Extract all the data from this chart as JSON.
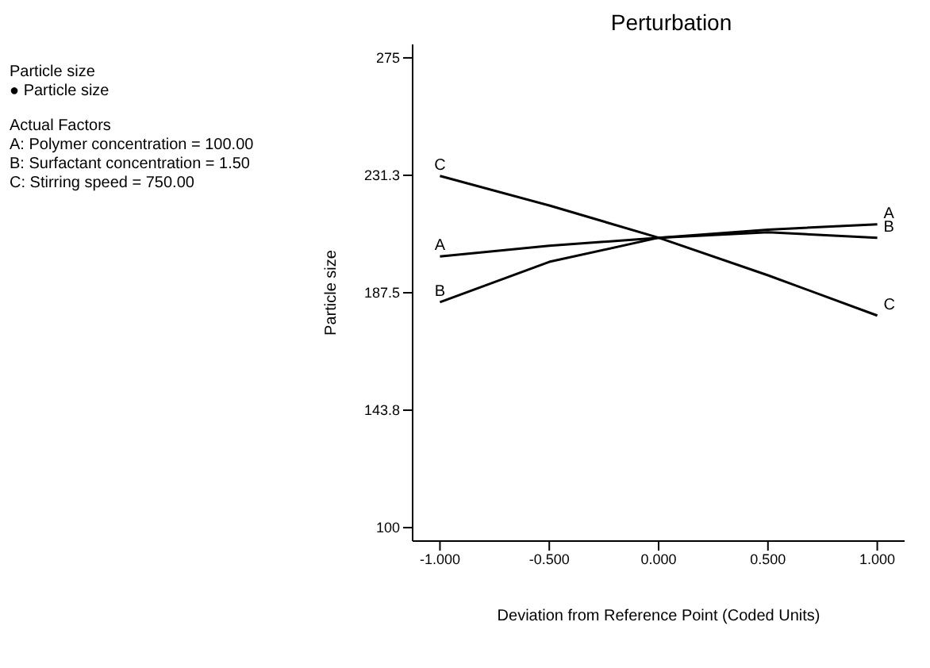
{
  "chart_data": {
    "type": "line",
    "title": "Perturbation",
    "xlabel": "Deviation from Reference Point (Coded Units)",
    "ylabel": "Particle size",
    "annotations": [
      "Particle size",
      "● Particle size",
      "Actual Factors",
      "A: Polymer concentration = 100.00",
      "B: Surfactant concentration = 1.50",
      "C: Stirring speed = 750.00"
    ],
    "x": [
      -1,
      -0.5,
      0,
      0.5,
      1
    ],
    "series": [
      {
        "name": "A",
        "color": "#000000",
        "values": [
          201,
          205,
          208,
          211,
          213
        ]
      },
      {
        "name": "B",
        "color": "#000000",
        "values": [
          184,
          199,
          208,
          210,
          208
        ]
      },
      {
        "name": "C",
        "color": "#000000",
        "values": [
          231,
          220,
          208,
          194,
          179
        ]
      }
    ],
    "xlim": [
      -1.125,
      1.125
    ],
    "xticks": [
      {
        "value": -1,
        "label": "-1.000"
      },
      {
        "value": -0.5,
        "label": "-0.500"
      },
      {
        "value": 0,
        "label": "0.000"
      },
      {
        "value": 0.5,
        "label": "0.500"
      },
      {
        "value": 1,
        "label": "1.000"
      }
    ],
    "ylim": [
      95,
      280
    ],
    "yticks": [
      100,
      {
        "value": 143.75,
        "label": "143.8"
      },
      {
        "value": 187.5,
        "label": "187.5"
      },
      {
        "value": 231.25,
        "label": "231.3"
      },
      275
    ],
    "grid": false,
    "legend": false,
    "marker": "none",
    "line_style": "solid"
  }
}
